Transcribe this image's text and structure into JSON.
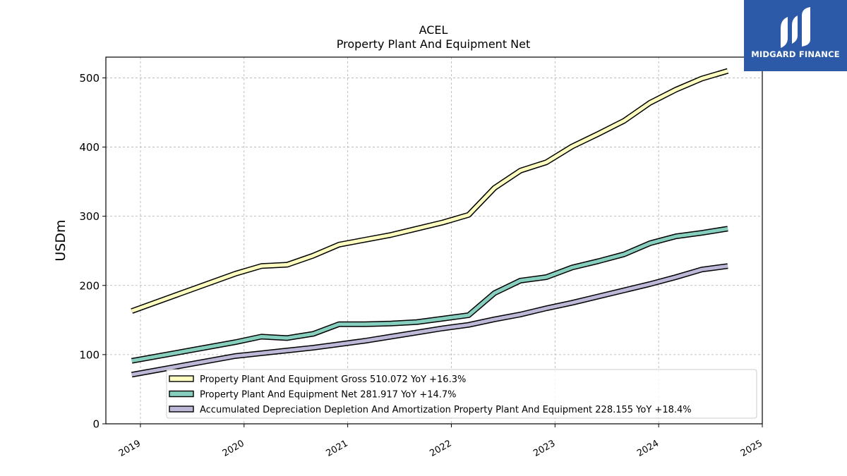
{
  "chart_data": {
    "type": "line",
    "title": "ACEL",
    "subtitle": "Property Plant And Equipment Net",
    "ylabel": "USDm",
    "xlabel": "",
    "x_ticks": [
      "2019",
      "2020",
      "2021",
      "2022",
      "2023",
      "2024",
      "2025"
    ],
    "y_ticks": [
      "0",
      "100",
      "200",
      "300",
      "400",
      "500"
    ],
    "ylim": [
      0,
      530
    ],
    "xlim": [
      "2018-09",
      "2025-01"
    ],
    "grid": true,
    "legend_position": "bottom-center",
    "x": [
      "2018-12",
      "2019-12",
      "2020-03",
      "2020-06",
      "2020-09",
      "2020-12",
      "2021-03",
      "2021-06",
      "2021-09",
      "2021-12",
      "2022-03",
      "2022-06",
      "2022-09",
      "2022-12",
      "2023-03",
      "2023-06",
      "2023-09",
      "2023-12",
      "2024-03",
      "2024-06",
      "2024-09"
    ],
    "series": [
      {
        "name": "Property Plant And Equipment Gross  510.072 YoY +16.3%",
        "color": "#ffffc0",
        "values": [
          163,
          217,
          228,
          230,
          243,
          259,
          266,
          273,
          282,
          291,
          302,
          341,
          366,
          378,
          401,
          419,
          438,
          464,
          483,
          499,
          510
        ]
      },
      {
        "name": "Property Plant And Equipment Net  281.917 YoY +14.7%",
        "color": "#86cebd",
        "values": [
          91,
          118,
          126,
          124,
          130,
          144,
          144,
          145,
          147,
          152,
          157,
          189,
          207,
          212,
          226,
          235,
          245,
          261,
          271,
          276,
          282
        ]
      },
      {
        "name": "Accumulated Depreciation Depletion And Amortization Property Plant And Equipment  228.155 YoY +18.4%",
        "color": "#bdb8d8",
        "values": [
          71,
          98,
          102,
          106,
          110,
          115,
          120,
          126,
          132,
          138,
          143,
          151,
          158,
          167,
          175,
          184,
          193,
          202,
          212,
          223,
          228
        ]
      }
    ]
  },
  "logo": {
    "text": "MIDGARD FINANCE"
  }
}
